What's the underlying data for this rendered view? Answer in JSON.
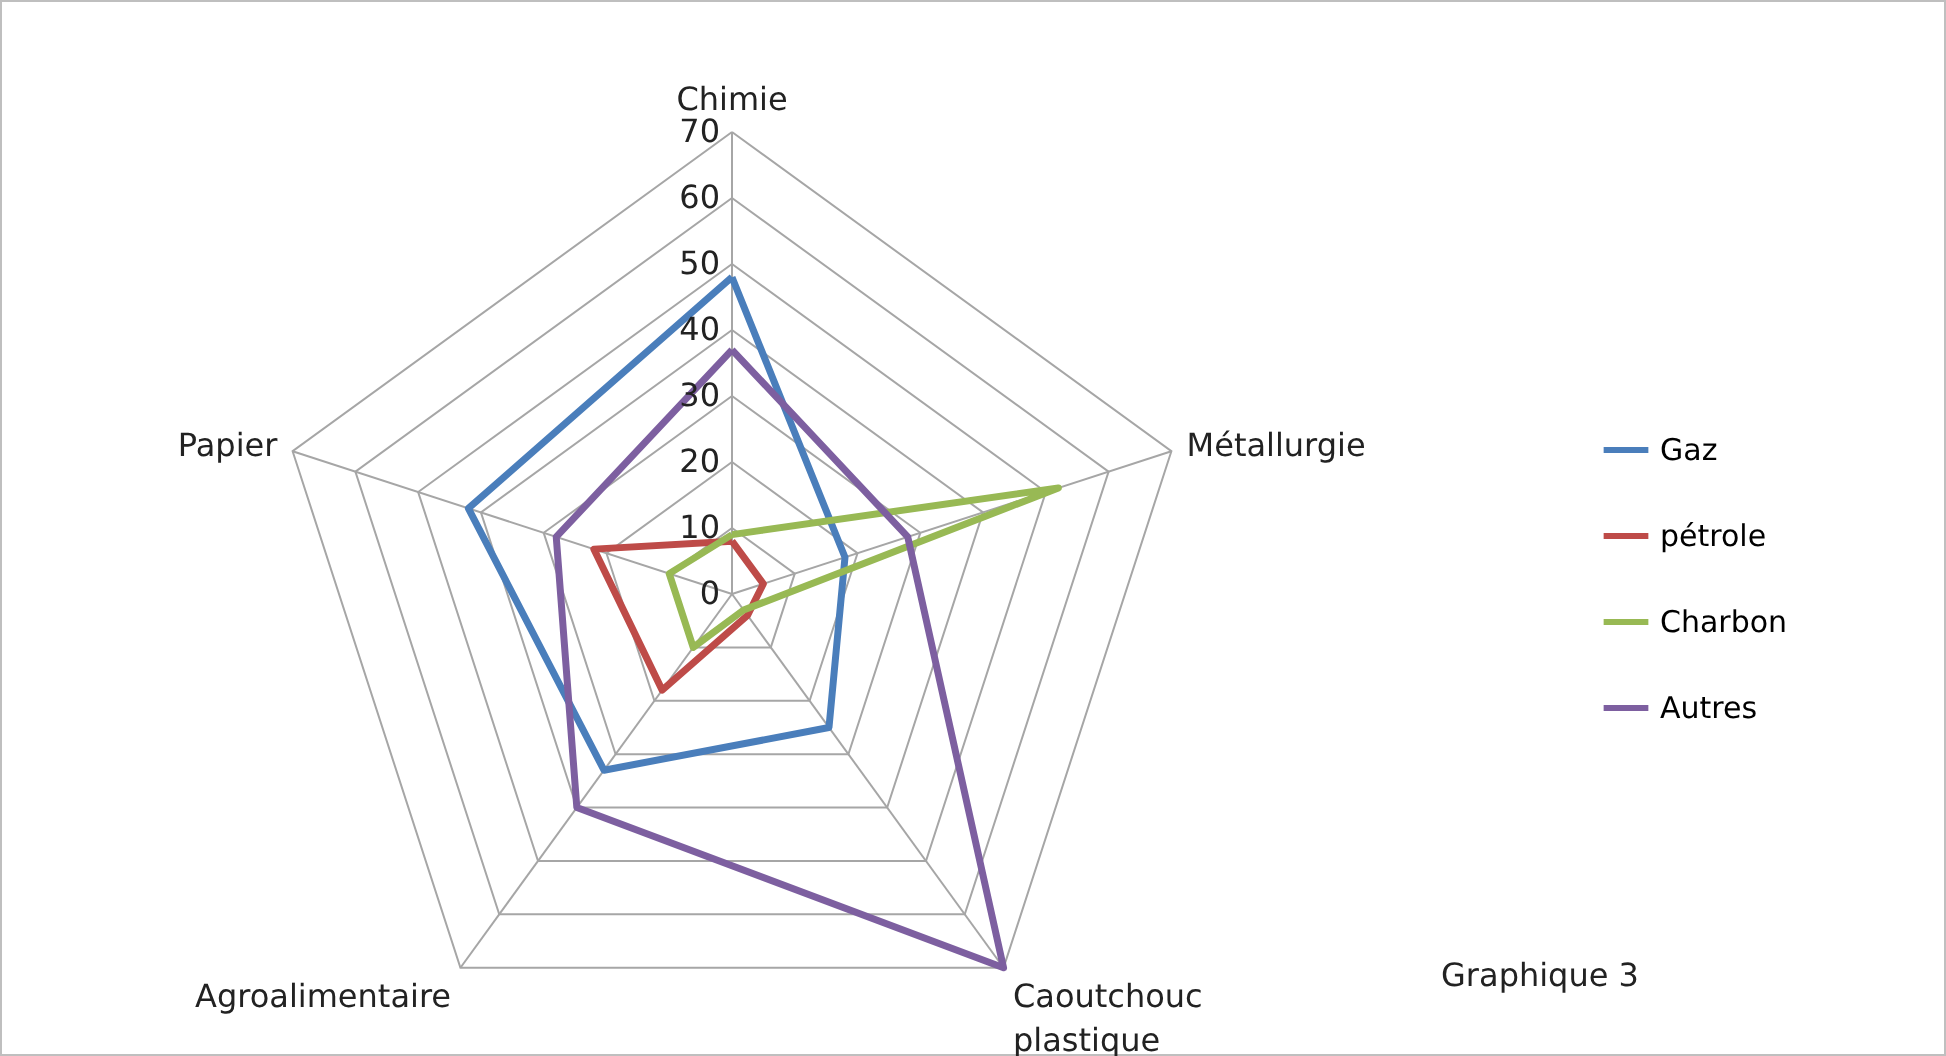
{
  "chart_data": {
    "type": "radar",
    "categories": [
      "Chimie",
      "Métallurgie",
      "Caoutchouc plastique",
      "Agroalimentaire",
      "Papier"
    ],
    "series": [
      {
        "name": "Gaz",
        "color": "#4a7ebb",
        "values": [
          48,
          18,
          25,
          33,
          42
        ]
      },
      {
        "name": "pétrole",
        "color": "#be4b48",
        "values": [
          8,
          5,
          4,
          18,
          22
        ]
      },
      {
        "name": "Charbon",
        "color": "#98b954",
        "values": [
          9,
          52,
          3,
          10,
          10
        ]
      },
      {
        "name": "Autres",
        "color": "#7d5fa0",
        "values": [
          37,
          28,
          70,
          40,
          28
        ]
      }
    ],
    "ylim": [
      0,
      70
    ],
    "yticks": [
      0,
      10,
      20,
      30,
      40,
      50,
      60,
      70
    ],
    "grid": true,
    "legend": "right",
    "annotations": [
      "Graphique 3"
    ]
  }
}
